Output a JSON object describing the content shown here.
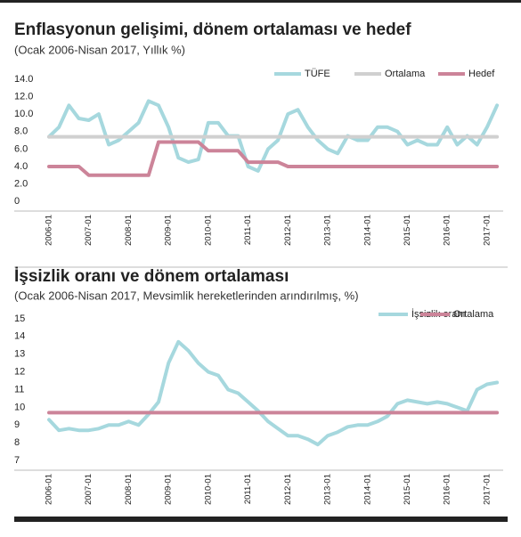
{
  "chart_data": [
    {
      "type": "line",
      "title": "Enflasyonun gelişimi, dönem ortalaması ve hedef",
      "subtitle": "(Ocak 2006-Nisan 2017, Yıllık %)",
      "categories": [
        "2006-01",
        null,
        null,
        null,
        "2007-01",
        null,
        null,
        null,
        "2008-01",
        null,
        null,
        null,
        "2009-01",
        null,
        null,
        null,
        "2010-01",
        null,
        null,
        null,
        "2011-01",
        null,
        null,
        null,
        "2012-01",
        null,
        null,
        null,
        "2013-01",
        null,
        null,
        null,
        "2014-01",
        null,
        null,
        null,
        "2015-01",
        null,
        null,
        null,
        "2016-01",
        null,
        null,
        null,
        "2017-01",
        null
      ],
      "series": [
        {
          "name": "TÜFE",
          "color": "#a6d8de",
          "values": [
            7.4,
            8.5,
            11.0,
            9.5,
            9.3,
            10.0,
            6.5,
            7.0,
            8.0,
            9.0,
            11.5,
            11.0,
            8.5,
            5.0,
            4.5,
            4.8,
            9.0,
            9.0,
            7.5,
            7.5,
            4.0,
            3.5,
            6.0,
            7.0,
            10.0,
            10.5,
            8.5,
            7.0,
            6.0,
            5.5,
            7.5,
            7.0,
            7.0,
            8.5,
            8.5,
            8.0,
            6.5,
            7.0,
            6.5,
            6.5,
            8.5,
            6.5,
            7.5,
            6.5,
            8.5,
            11.0
          ]
        },
        {
          "name": "Ortalama",
          "color": "#d0d0d0",
          "values": [
            7.4,
            7.4,
            7.4,
            7.4,
            7.4,
            7.4,
            7.4,
            7.4,
            7.4,
            7.4,
            7.4,
            7.4,
            7.4,
            7.4,
            7.4,
            7.4,
            7.4,
            7.4,
            7.4,
            7.4,
            7.4,
            7.4,
            7.4,
            7.4,
            7.4,
            7.4,
            7.4,
            7.4,
            7.4,
            7.4,
            7.4,
            7.4,
            7.4,
            7.4,
            7.4,
            7.4,
            7.4,
            7.4,
            7.4,
            7.4,
            7.4,
            7.4,
            7.4,
            7.4,
            7.4,
            7.4
          ]
        },
        {
          "name": "Hedef",
          "color": "#cc8499",
          "values": [
            4,
            4,
            4,
            4,
            3,
            3,
            3,
            3,
            3,
            3,
            3,
            6.8,
            6.8,
            6.8,
            6.8,
            6.8,
            5.8,
            5.8,
            5.8,
            5.8,
            4.5,
            4.5,
            4.5,
            4.5,
            4,
            4,
            4,
            4,
            4,
            4,
            4,
            4,
            4,
            4,
            4,
            4,
            4,
            4,
            4,
            4,
            4,
            4,
            4,
            4,
            4,
            4
          ]
        }
      ],
      "ylim": [
        -1,
        14.5
      ],
      "yticks": [
        0,
        {
          "value": 2,
          "label": "2.0"
        },
        {
          "value": 4,
          "label": "4.0"
        },
        {
          "value": 6,
          "label": "6.0"
        },
        {
          "value": 8,
          "label": "8.0"
        },
        {
          "value": 10,
          "label": "10.0"
        },
        {
          "value": 12,
          "label": "12.0"
        },
        {
          "value": 14,
          "label": "14.0"
        }
      ],
      "grid": false,
      "legend": "top-right"
    },
    {
      "type": "line",
      "title": "İşsizlik oranı ve dönem ortalaması",
      "subtitle": "(Ocak 2006-Nisan 2017, Mevsimlik hereketlerinden arındırılmış, %)",
      "categories": [
        "2006-01",
        null,
        null,
        null,
        "2007-01",
        null,
        null,
        null,
        "2008-01",
        null,
        null,
        null,
        "2009-01",
        null,
        null,
        null,
        "2010-01",
        null,
        null,
        null,
        "2011-01",
        null,
        null,
        null,
        "2012-01",
        null,
        null,
        null,
        "2013-01",
        null,
        null,
        null,
        "2014-01",
        null,
        null,
        null,
        "2015-01",
        null,
        null,
        null,
        "2016-01",
        null,
        null,
        null,
        "2017-01",
        null
      ],
      "series": [
        {
          "name": "İşsizlik oranı",
          "color": "#a6d8de",
          "values": [
            9.3,
            8.7,
            8.8,
            8.7,
            8.7,
            8.8,
            9.0,
            9.0,
            9.2,
            9.0,
            9.6,
            10.3,
            12.5,
            13.7,
            13.2,
            12.5,
            12.0,
            11.8,
            11.0,
            10.8,
            10.3,
            9.8,
            9.2,
            8.8,
            8.4,
            8.4,
            8.2,
            7.9,
            8.4,
            8.6,
            8.9,
            9.0,
            9.0,
            9.2,
            9.5,
            10.2,
            10.4,
            10.3,
            10.2,
            10.3,
            10.2,
            10.0,
            9.8,
            11.0,
            11.3,
            11.4
          ]
        },
        {
          "name": "Ortalama",
          "color": "#cc8499",
          "values": [
            9.7,
            9.7,
            9.7,
            9.7,
            9.7,
            9.7,
            9.7,
            9.7,
            9.7,
            9.7,
            9.7,
            9.7,
            9.7,
            9.7,
            9.7,
            9.7,
            9.7,
            9.7,
            9.7,
            9.7,
            9.7,
            9.7,
            9.7,
            9.7,
            9.7,
            9.7,
            9.7,
            9.7,
            9.7,
            9.7,
            9.7,
            9.7,
            9.7,
            9.7,
            9.7,
            9.7,
            9.7,
            9.7,
            9.7,
            9.7,
            9.7,
            9.7,
            9.7,
            9.7,
            9.7,
            9.7
          ]
        }
      ],
      "ylim": [
        6.5,
        15.5
      ],
      "yticks": [
        7,
        8,
        9,
        10,
        11,
        12,
        13,
        14,
        15
      ],
      "grid": false,
      "legend": "top-right"
    }
  ]
}
